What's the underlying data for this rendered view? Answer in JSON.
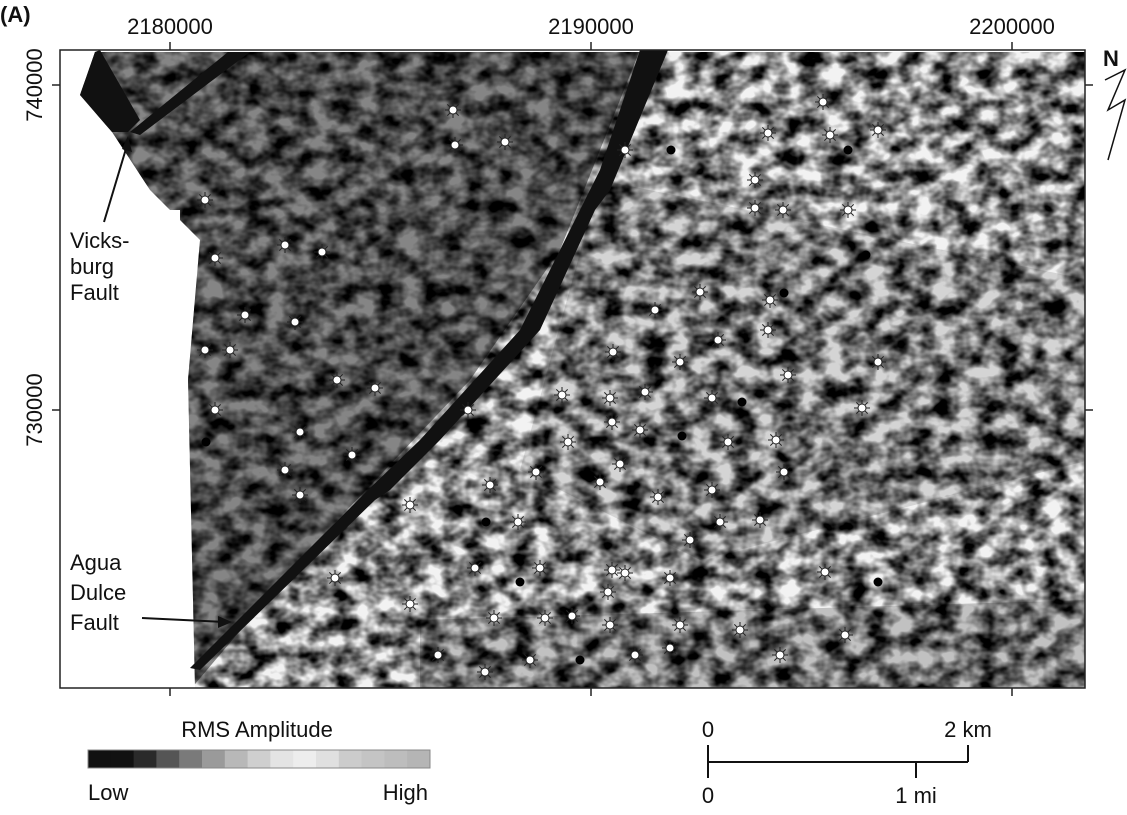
{
  "figure": {
    "panel_label": "(A)",
    "x_axis": {
      "ticks": [
        "2180000",
        "2190000",
        "2200000"
      ]
    },
    "y_axis": {
      "ticks": [
        "740000",
        "730000"
      ]
    },
    "north_label": "N",
    "annotations": [
      {
        "lines": [
          "Vicks-",
          "burg",
          "Fault"
        ]
      },
      {
        "lines": [
          "Agua",
          "Dulce",
          "Fault"
        ]
      }
    ],
    "legend": {
      "title": "RMS Amplitude",
      "low": "Low",
      "high": "High"
    },
    "scale_bar": {
      "km_start": "0",
      "km_end": "2 km",
      "mi_start": "0",
      "mi_end": "1 mi"
    }
  }
}
